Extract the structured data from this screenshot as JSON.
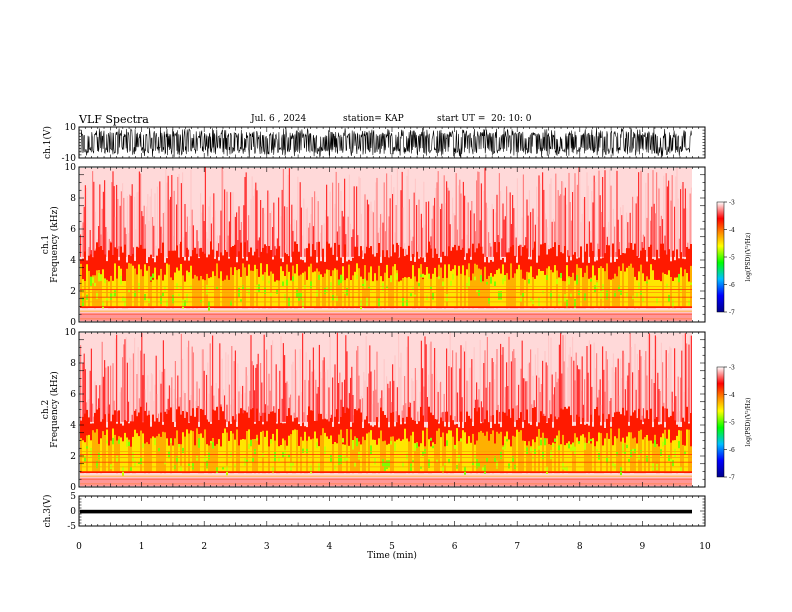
{
  "header": {
    "title": "VLF Spectra",
    "date": "Jul. 6 , 2024",
    "station": "station= KAP",
    "start_time": "start UT =  20: 10: 0"
  },
  "chart_data": [
    {
      "type": "line",
      "panel": "ch1-waveform",
      "ylabel": "ch.1(V)",
      "ylim": [
        -10,
        10
      ],
      "yticks": [
        "10",
        "-10"
      ],
      "xlim": [
        0,
        10
      ],
      "color": "#000000"
    },
    {
      "type": "heatmap",
      "panel": "ch1-spectrogram",
      "ylabel": "ch.1\nFrequency (kHz)",
      "ylim": [
        0,
        10
      ],
      "yticks": [
        "0",
        "2",
        "4",
        "6",
        "8",
        "10"
      ],
      "xlim": [
        0,
        10
      ],
      "colorbar": {
        "label": "log(PSD)(V²/Hz)",
        "range": [
          -7,
          -3
        ],
        "ticks": [
          "-3",
          "-4",
          "-5",
          "-6",
          "-7"
        ]
      }
    },
    {
      "type": "heatmap",
      "panel": "ch2-spectrogram",
      "ylabel": "ch.2\nFrequency (kHz)",
      "ylim": [
        0,
        10
      ],
      "yticks": [
        "0",
        "2",
        "4",
        "6",
        "8",
        "10"
      ],
      "xlim": [
        0,
        10
      ],
      "colorbar": {
        "label": "log(PSD)(V²/Hz)",
        "range": [
          -7,
          -3
        ],
        "ticks": [
          "-3",
          "-4",
          "-5",
          "-6",
          "-7"
        ]
      }
    },
    {
      "type": "line",
      "panel": "ch3-waveform",
      "ylabel": "ch.3(V)",
      "ylim": [
        -5,
        5
      ],
      "yticks": [
        "5",
        "0",
        "-5"
      ],
      "xlim": [
        0,
        10
      ],
      "color": "#000000"
    }
  ],
  "xaxis": {
    "label": "Time (min)",
    "ticks": [
      "0",
      "1",
      "2",
      "3",
      "4",
      "5",
      "6",
      "7",
      "8",
      "9",
      "10"
    ]
  },
  "colors": {
    "colormap": [
      "#00008b",
      "#0000ff",
      "#00bfff",
      "#00ff00",
      "#ffff00",
      "#ff8c00",
      "#ff0000",
      "#ffffff"
    ]
  }
}
